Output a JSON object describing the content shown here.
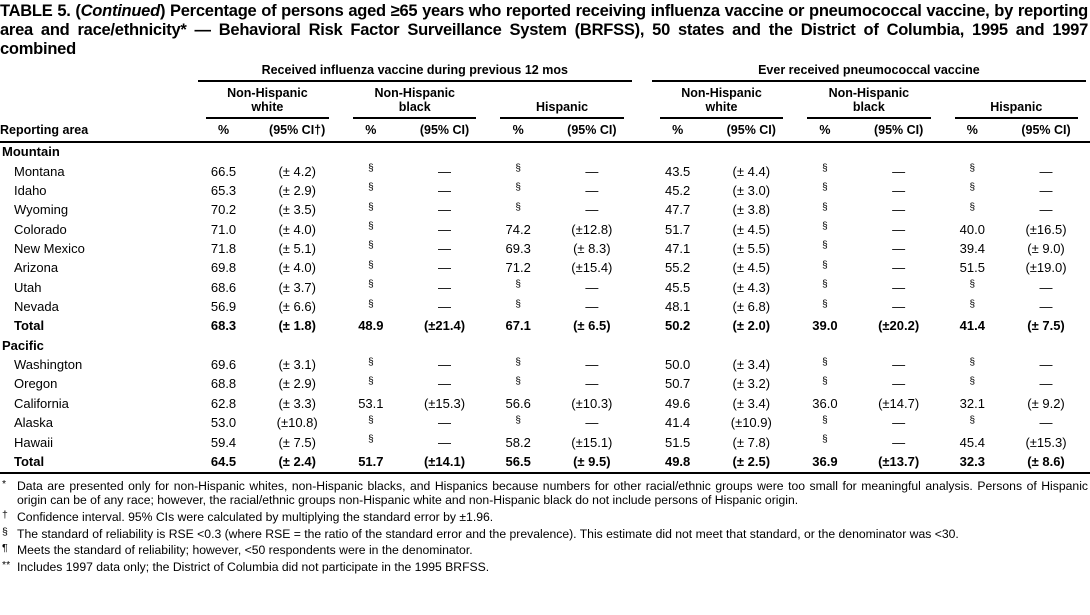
{
  "title": {
    "part1": "TABLE 5. (",
    "part2_italic": "Continued",
    "part3": ") Percentage of persons aged ≥65 years who reported receiving influenza vaccine or pneumococcal vaccine, by reporting area and race/ethnicity* — Behavioral Risk Factor Surveillance System (BRFSS), 50 states and the District of Columbia, 1995 and 1997 combined"
  },
  "table": {
    "groups": [
      "Received influenza vaccine during previous 12 mos",
      "Ever received pneumococcal vaccine"
    ],
    "subgroups": [
      "Non-Hispanic white",
      "Non-Hispanic black",
      "Hispanic",
      "Non-Hispanic white",
      "Non-Hispanic black",
      "Hispanic"
    ],
    "area_header": "Reporting area",
    "pct_label": "%",
    "ci_labels": [
      "(95% CI†)",
      "(95% CI)",
      "(95% CI)",
      "(95% CI)",
      "(95% CI)",
      "(95% CI)"
    ],
    "sections": [
      {
        "header": "Mountain",
        "rows": [
          {
            "label": "Montana",
            "bold": false,
            "values": [
              "66.5",
              "(± 4.2)",
              "§",
              "—",
              "§",
              "—",
              "43.5",
              "(± 4.4)",
              "§",
              "—",
              "§",
              "—"
            ]
          },
          {
            "label": "Idaho",
            "bold": false,
            "values": [
              "65.3",
              "(± 2.9)",
              "§",
              "—",
              "§",
              "—",
              "45.2",
              "(± 3.0)",
              "§",
              "—",
              "§",
              "—"
            ]
          },
          {
            "label": "Wyoming",
            "bold": false,
            "values": [
              "70.2",
              "(± 3.5)",
              "§",
              "—",
              "§",
              "—",
              "47.7",
              "(± 3.8)",
              "§",
              "—",
              "§",
              "—"
            ]
          },
          {
            "label": "Colorado",
            "bold": false,
            "values": [
              "71.0",
              "(± 4.0)",
              "§",
              "—",
              "74.2",
              "(±12.8)",
              "51.7",
              "(± 4.5)",
              "§",
              "—",
              "40.0",
              "(±16.5)"
            ]
          },
          {
            "label": "New Mexico",
            "bold": false,
            "values": [
              "71.8",
              "(± 5.1)",
              "§",
              "—",
              "69.3",
              "(± 8.3)",
              "47.1",
              "(± 5.5)",
              "§",
              "—",
              "39.4",
              "(± 9.0)"
            ]
          },
          {
            "label": "Arizona",
            "bold": false,
            "values": [
              "69.8",
              "(± 4.0)",
              "§",
              "—",
              "71.2",
              "(±15.4)",
              "55.2",
              "(± 4.5)",
              "§",
              "—",
              "51.5",
              "(±19.0)"
            ]
          },
          {
            "label": "Utah",
            "bold": false,
            "values": [
              "68.6",
              "(± 3.7)",
              "§",
              "—",
              "§",
              "—",
              "45.5",
              "(± 4.3)",
              "§",
              "—",
              "§",
              "—"
            ]
          },
          {
            "label": "Nevada",
            "bold": false,
            "values": [
              "56.9",
              "(± 6.6)",
              "§",
              "—",
              "§",
              "—",
              "48.1",
              "(± 6.8)",
              "§",
              "—",
              "§",
              "—"
            ]
          },
          {
            "label": "Total",
            "bold": true,
            "values": [
              "68.3",
              "(± 1.8)",
              "48.9",
              "(±21.4)",
              "67.1",
              "(± 6.5)",
              "50.2",
              "(± 2.0)",
              "39.0",
              "(±20.2)",
              "41.4",
              "(± 7.5)"
            ]
          }
        ]
      },
      {
        "header": "Pacific",
        "rows": [
          {
            "label": "Washington",
            "bold": false,
            "values": [
              "69.6",
              "(± 3.1)",
              "§",
              "—",
              "§",
              "—",
              "50.0",
              "(± 3.4)",
              "§",
              "—",
              "§",
              "—"
            ]
          },
          {
            "label": "Oregon",
            "bold": false,
            "values": [
              "68.8",
              "(± 2.9)",
              "§",
              "—",
              "§",
              "—",
              "50.7",
              "(± 3.2)",
              "§",
              "—",
              "§",
              "—"
            ]
          },
          {
            "label": "California",
            "bold": false,
            "values": [
              "62.8",
              "(± 3.3)",
              "53.1",
              "(±15.3)",
              "56.6",
              "(±10.3)",
              "49.6",
              "(± 3.4)",
              "36.0",
              "(±14.7)",
              "32.1",
              "(± 9.2)"
            ]
          },
          {
            "label": "Alaska",
            "bold": false,
            "values": [
              "53.0",
              "(±10.8)",
              "§",
              "—",
              "§",
              "—",
              "41.4",
              "(±10.9)",
              "§",
              "—",
              "§",
              "—"
            ]
          },
          {
            "label": "Hawaii",
            "bold": false,
            "values": [
              "59.4",
              "(± 7.5)",
              "§",
              "—",
              "58.2",
              "(±15.1)",
              "51.5",
              "(± 7.8)",
              "§",
              "—",
              "45.4",
              "(±15.3)"
            ]
          },
          {
            "label": "Total",
            "bold": true,
            "values": [
              "64.5",
              "(± 2.4)",
              "51.7",
              "(±14.1)",
              "56.5",
              "(± 9.5)",
              "49.8",
              "(± 2.5)",
              "36.9",
              "(±13.7)",
              "32.3",
              "(± 8.6)"
            ]
          }
        ]
      }
    ]
  },
  "footnotes": [
    {
      "marker": "*",
      "text": "Data are presented only for non-Hispanic whites, non-Hispanic blacks, and Hispanics because numbers for other racial/ethnic groups were too small for meaningful analysis. Persons of Hispanic origin can be of any race; however, the racial/ethnic groups non-Hispanic white and non-Hispanic black do not include persons of Hispanic origin."
    },
    {
      "marker": "†",
      "text": "Confidence interval. 95% CIs were calculated by multiplying the standard error by ±1.96."
    },
    {
      "marker": "§",
      "text": "The standard of reliability is RSE <0.3 (where RSE = the ratio of the standard error and the prevalence). This estimate did not meet that standard, or the denominator was <30."
    },
    {
      "marker": "¶",
      "text": "Meets the standard of reliability; however, <50 respondents were in the denominator."
    },
    {
      "marker": "**",
      "text": "Includes 1997 data only; the District of Columbia did not participate in the 1995 BRFSS."
    }
  ]
}
